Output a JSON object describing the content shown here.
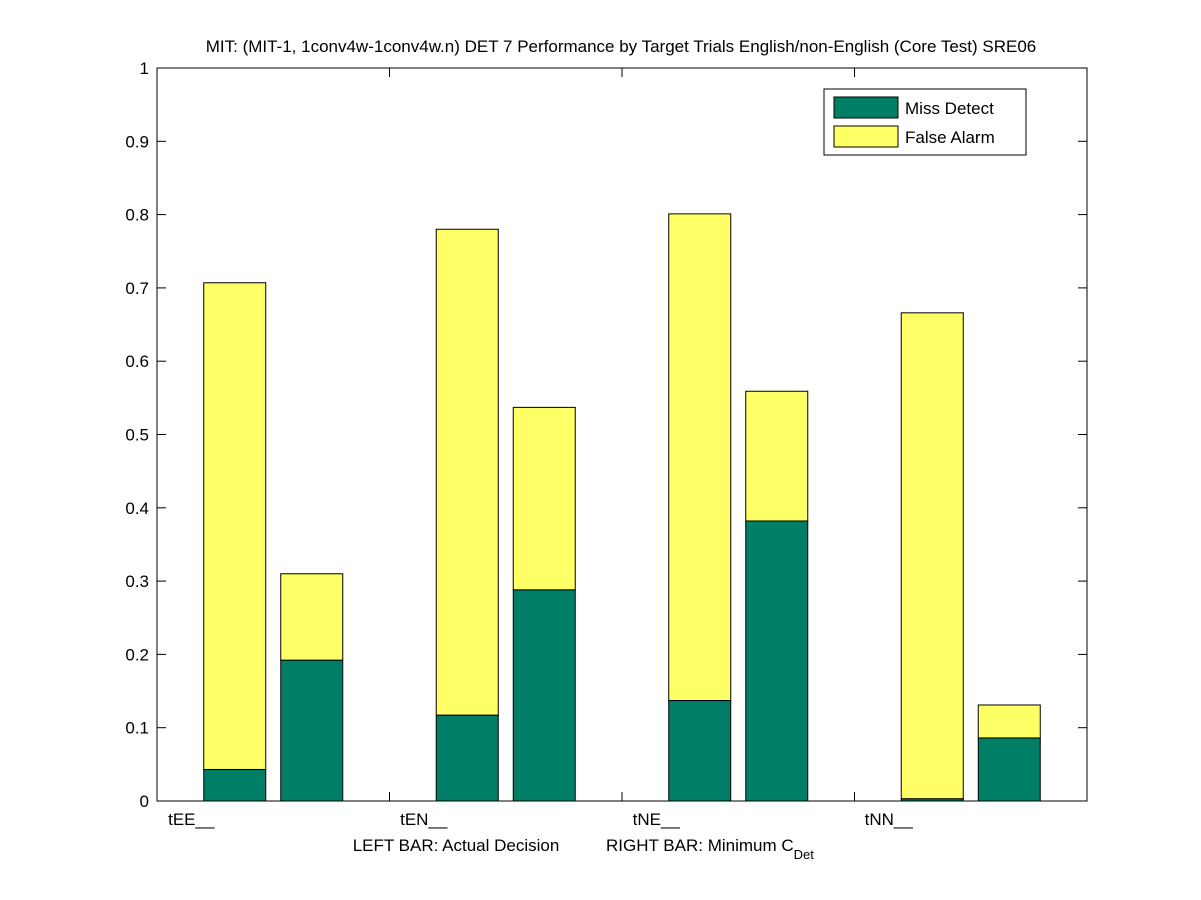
{
  "chart_data": {
    "type": "bar",
    "title": "MIT: (MIT-1, 1conv4w-1conv4w.n) DET 7 Performance by Target Trials English/non-English (Core Test) SRE06",
    "categories": [
      "tEE__",
      "tEN__",
      "tNE__",
      "tNN__"
    ],
    "xlabel": {
      "left": "LEFT BAR: Actual Decision",
      "right": "RIGHT BAR: Minimum C",
      "right_sub": "Det"
    },
    "ylabel": "",
    "ylim": [
      0,
      1
    ],
    "yticks": [
      "0",
      "0.1",
      "0.2",
      "0.3",
      "0.4",
      "0.5",
      "0.6",
      "0.7",
      "0.8",
      "0.9",
      "1"
    ],
    "bar_groups": [
      {
        "label": "Actual Decision",
        "miss_detect": [
          0.043,
          0.117,
          0.137,
          0.003
        ],
        "total": [
          0.707,
          0.78,
          0.801,
          0.666
        ]
      },
      {
        "label": "Minimum CDet",
        "miss_detect": [
          0.192,
          0.288,
          0.382,
          0.086
        ],
        "total": [
          0.31,
          0.537,
          0.559,
          0.131
        ]
      }
    ],
    "series": [
      {
        "name": "Miss Detect",
        "color": "#007f66"
      },
      {
        "name": "False Alarm",
        "color": "#ffff66"
      }
    ],
    "legend_position": "top-right",
    "grid": false
  }
}
